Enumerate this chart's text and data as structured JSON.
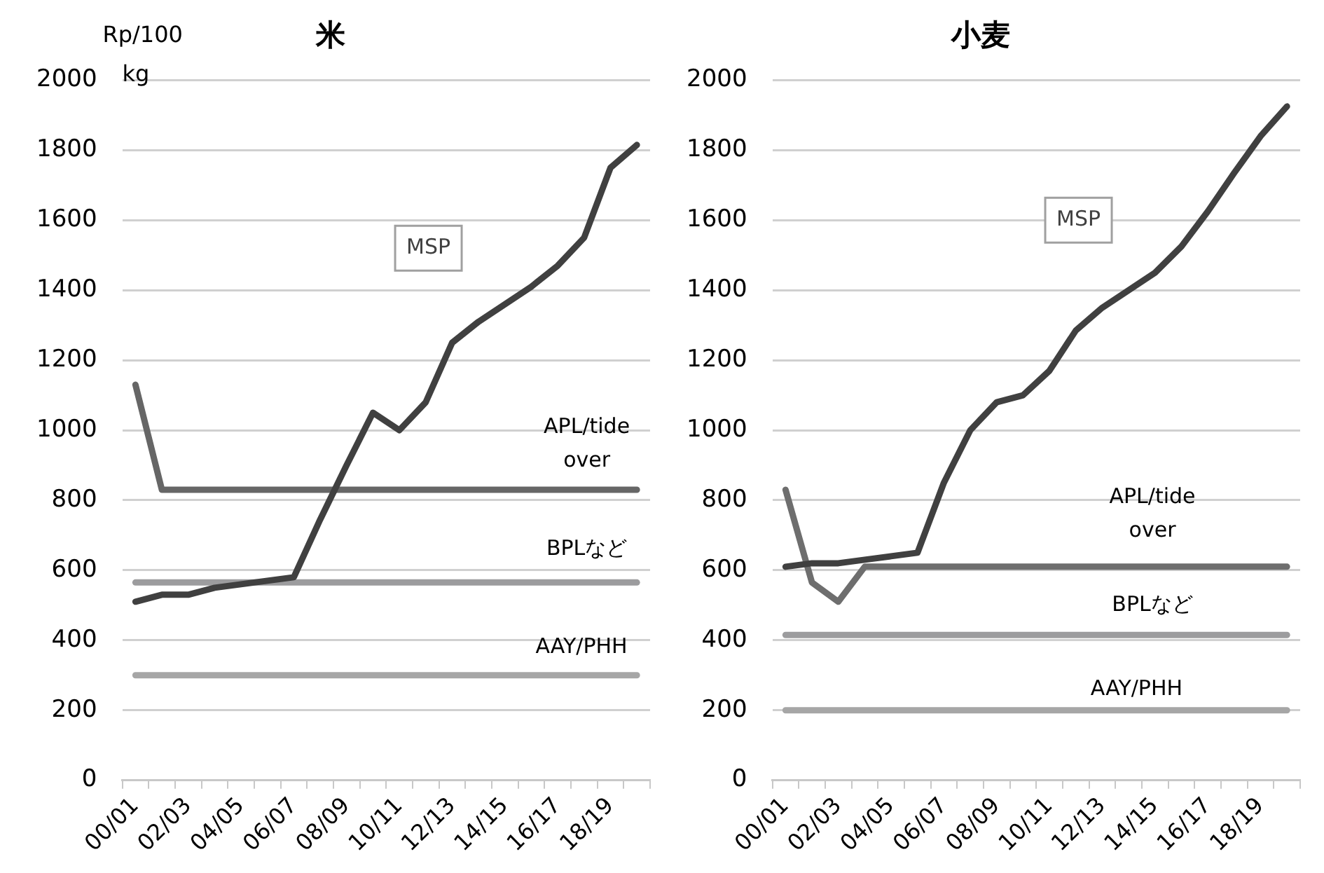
{
  "chart_data": [
    {
      "type": "line",
      "title": "米",
      "ylabel": "Rp/100 kg",
      "categories": [
        "00/01",
        null,
        "02/03",
        null,
        "04/05",
        null,
        "06/07",
        null,
        "08/09",
        null,
        "10/11",
        null,
        "12/13",
        null,
        "14/15",
        null,
        "16/17",
        null,
        "18/19",
        null
      ],
      "ylim": [
        0,
        2000
      ],
      "yticks": [
        0,
        200,
        400,
        600,
        800,
        1000,
        1200,
        1400,
        1600,
        1800,
        2000
      ],
      "grid": "y",
      "legend": false,
      "marker": "none",
      "series": [
        {
          "name": "MSP",
          "color": "#404040",
          "values": [
            510,
            530,
            530,
            550,
            560,
            570,
            580,
            745,
            900,
            1050,
            1000,
            1080,
            1250,
            1310,
            1360,
            1410,
            1470,
            1550,
            1750,
            1815
          ]
        },
        {
          "name": "APL/tide over",
          "color": "#666666",
          "values": [
            1130,
            830,
            830,
            830,
            830,
            830,
            830,
            830,
            830,
            830,
            830,
            830,
            830,
            830,
            830,
            830,
            830,
            830,
            830,
            830
          ]
        },
        {
          "name": "BPLなど",
          "color": "#9c9c9e",
          "values": [
            565,
            565,
            565,
            565,
            565,
            565,
            565,
            565,
            565,
            565,
            565,
            565,
            565,
            565,
            565,
            565,
            565,
            565,
            565,
            565
          ]
        },
        {
          "name": "AAY/PHH",
          "color": "#a6a6a6",
          "values": [
            300,
            300,
            300,
            300,
            300,
            300,
            300,
            300,
            300,
            300,
            300,
            300,
            300,
            300,
            300,
            300,
            300,
            300,
            300,
            300
          ]
        }
      ]
    },
    {
      "type": "line",
      "title": "小麦",
      "categories": [
        "00/01",
        null,
        "02/03",
        null,
        "04/05",
        null,
        "06/07",
        null,
        "08/09",
        null,
        "10/11",
        null,
        "12/13",
        null,
        "14/15",
        null,
        "16/17",
        null,
        "18/19",
        null
      ],
      "ylim": [
        0,
        2000
      ],
      "yticks": [
        0,
        200,
        400,
        600,
        800,
        1000,
        1200,
        1400,
        1600,
        1800,
        2000
      ],
      "grid": "y",
      "legend": false,
      "marker": "none",
      "series": [
        {
          "name": "MSP",
          "color": "#404040",
          "values": [
            610,
            620,
            620,
            630,
            640,
            650,
            850,
            1000,
            1080,
            1100,
            1170,
            1285,
            1350,
            1400,
            1450,
            1525,
            1625,
            1735,
            1840,
            1925
          ]
        },
        {
          "name": "APL/tide over",
          "color": "#6e6e6e",
          "values": [
            830,
            565,
            510,
            610,
            610,
            610,
            610,
            610,
            610,
            610,
            610,
            610,
            610,
            610,
            610,
            610,
            610,
            610,
            610,
            610
          ]
        },
        {
          "name": "BPLなど",
          "color": "#9c9c9e",
          "values": [
            415,
            415,
            415,
            415,
            415,
            415,
            415,
            415,
            415,
            415,
            415,
            415,
            415,
            415,
            415,
            415,
            415,
            415,
            415,
            415
          ]
        },
        {
          "name": "AAY/PHH",
          "color": "#a6a6a6",
          "values": [
            200,
            200,
            200,
            200,
            200,
            200,
            200,
            200,
            200,
            200,
            200,
            200,
            200,
            200,
            200,
            200,
            200,
            200,
            200,
            200
          ]
        }
      ]
    }
  ]
}
